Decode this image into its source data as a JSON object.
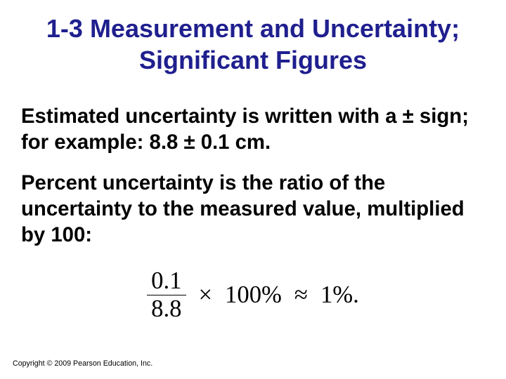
{
  "title": {
    "line1": "1-3 Measurement and Uncertainty;",
    "line2": "Significant Figures",
    "color": "#1f1f8f",
    "fontsize_pt": 27
  },
  "paragraphs": {
    "p1": "Estimated uncertainty is written with a ± sign; for example:   8.8 ± 0.1 cm.",
    "p2": "Percent uncertainty is the ratio of the uncertainty to the measured value, multiplied by 100:",
    "fontsize_pt": 22,
    "color": "#000000"
  },
  "equation": {
    "numerator": "0.1",
    "denominator": "8.8",
    "times": "×",
    "percent_factor": "100%",
    "approx": "≈",
    "result": "1%.",
    "fontsize_pt": 26,
    "color": "#000000"
  },
  "copyright": {
    "text": "Copyright © 2009 Pearson Education, Inc.",
    "fontsize_pt": 8
  },
  "background_color": "#ffffff"
}
